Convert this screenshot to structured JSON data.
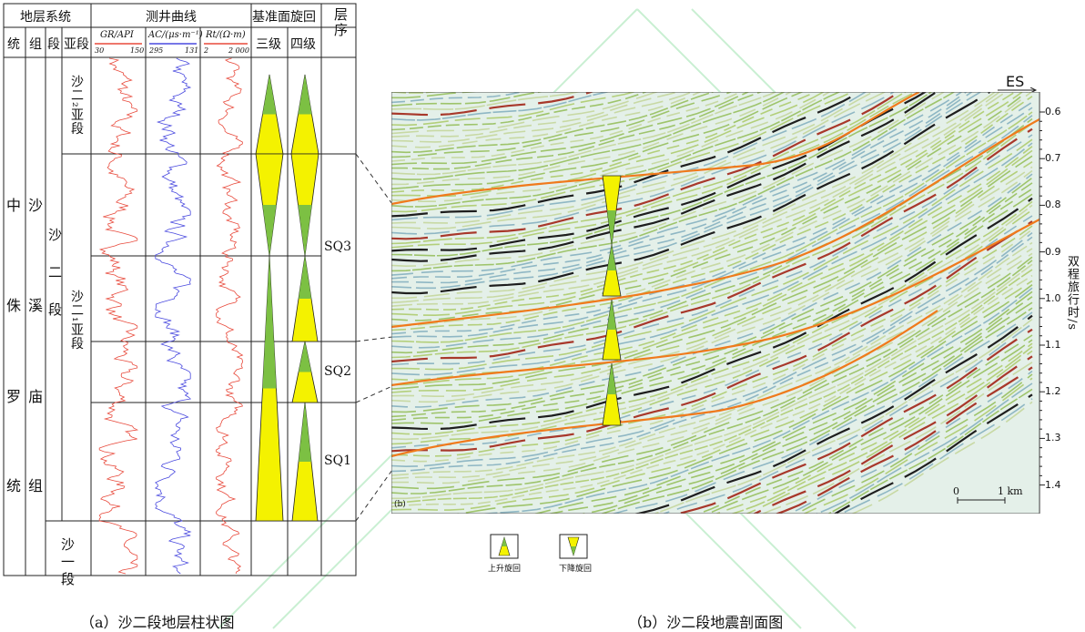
{
  "header": {
    "strat_system": "地层系统",
    "log_curves": "测井曲线",
    "base_cycle": "基准面旋回",
    "sequence": "层序",
    "cols": {
      "series": "统",
      "formation": "组",
      "member": "段",
      "submember": "亚段",
      "third": "三级",
      "fourth": "四级"
    },
    "gr": {
      "name": "GR/API",
      "min": "30",
      "max": "150"
    },
    "ac": {
      "name": "AC/(μs·m⁻¹)",
      "min": "295",
      "max": "131"
    },
    "rt": {
      "name": "Rt/(Ω·m)",
      "min": "2",
      "max": "2 000"
    }
  },
  "column": {
    "series": [
      "中",
      "侏",
      "罗",
      "统"
    ],
    "formation": [
      "沙",
      "溪",
      "庙",
      "组"
    ],
    "member_sha2": "沙二段",
    "member_sha1": "沙一段",
    "sub_upper": "沙二₂亚段",
    "sub_lower": "沙二₁亚段",
    "sequences": [
      "SQ3",
      "SQ2",
      "SQ1"
    ]
  },
  "seismic": {
    "direction": "ES",
    "panel_label": "(b)",
    "axis_title": "双程旅行时/s",
    "ticks": [
      "0.6",
      "0.7",
      "0.8",
      "0.9",
      "1.0",
      "1.1",
      "1.2",
      "1.3",
      "1.4"
    ],
    "scale": {
      "zero": "0",
      "length": "1 km"
    }
  },
  "legend": {
    "rising": "上升旋回",
    "falling": "下降旋回"
  },
  "captions": {
    "a": "（a）沙二段地层柱状图",
    "b": "（b）沙二段地震剖面图"
  },
  "colors": {
    "cycle_green": "#7cc043",
    "cycle_yellow": "#f4f200",
    "gr_curve": "#e84a3c",
    "ac_curve": "#4a4adf",
    "horizon": "#f07a1c"
  }
}
